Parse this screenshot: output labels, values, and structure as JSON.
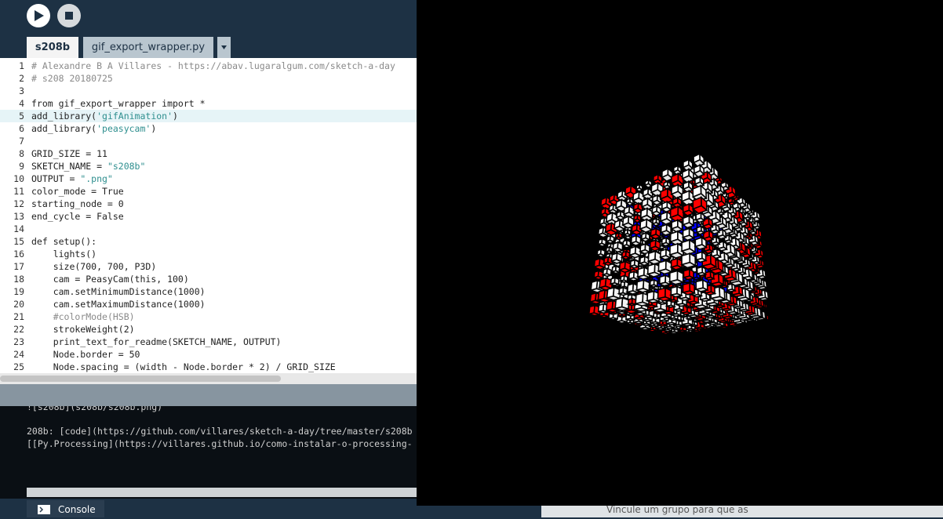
{
  "toolbar": {
    "tabs": [
      "s208b",
      "gif_export_wrapper.py"
    ]
  },
  "editor": {
    "lines": [
      {
        "number": 1,
        "text": "# Alexandre B A Villares - https://abav.lugaralgum.com/sketch-a-day"
      },
      {
        "number": 2,
        "text": "# s208 20180725"
      },
      {
        "number": 3,
        "text": null
      },
      {
        "number": 4,
        "text": "from gif_export_wrapper import *"
      },
      {
        "number": 5,
        "text": "add_library('gifAnimation')"
      },
      {
        "number": 6,
        "text": "add_library('peasycam')"
      },
      {
        "number": 7,
        "text": null
      },
      {
        "number": 8,
        "text": "GRID_SIZE = 11"
      },
      {
        "number": 9,
        "text": "SKETCH_NAME = \"s208b\""
      },
      {
        "number": 10,
        "text": "OUTPUT = \".png\""
      },
      {
        "number": 11,
        "text": "color_mode = True"
      },
      {
        "number": 12,
        "text": "starting_node = 0"
      },
      {
        "number": 13,
        "text": "end_cycle = False"
      },
      {
        "number": 14,
        "text": null
      },
      {
        "number": 15,
        "text": "def setup():"
      },
      {
        "number": 16,
        "text": "    lights()"
      },
      {
        "number": 17,
        "text": "    size(700, 700, P3D)"
      },
      {
        "number": 18,
        "text": "    cam = PeasyCam(this, 100)"
      },
      {
        "number": 19,
        "text": "    cam.setMinimumDistance(1000)"
      },
      {
        "number": 20,
        "text": "    cam.setMaximumDistance(1000)"
      },
      {
        "number": 21,
        "text": "    #colorMode(HSB)"
      },
      {
        "number": 22,
        "text": "    strokeWeight(2)"
      },
      {
        "number": 23,
        "text": "    print_text_for_readme(SKETCH_NAME, OUTPUT)"
      },
      {
        "number": 24,
        "text": "    Node.border = 50"
      },
      {
        "number": 25,
        "text": "    Node.spacing = (width - Node.border * 2) / GRID_SIZE"
      }
    ],
    "current_line": 5
  },
  "console": {
    "lines": [
      "![s208b](s208b/s208b.png)",
      "208b: [code](https://github.com/villares/sketch-a-day/tree/master/s208b",
      "[[Py.Processing](https://villares.github.io/como-instalar-o-processing-"
    ],
    "tab": "Console"
  },
  "background_text": "Vincule um grupo para que as"
}
